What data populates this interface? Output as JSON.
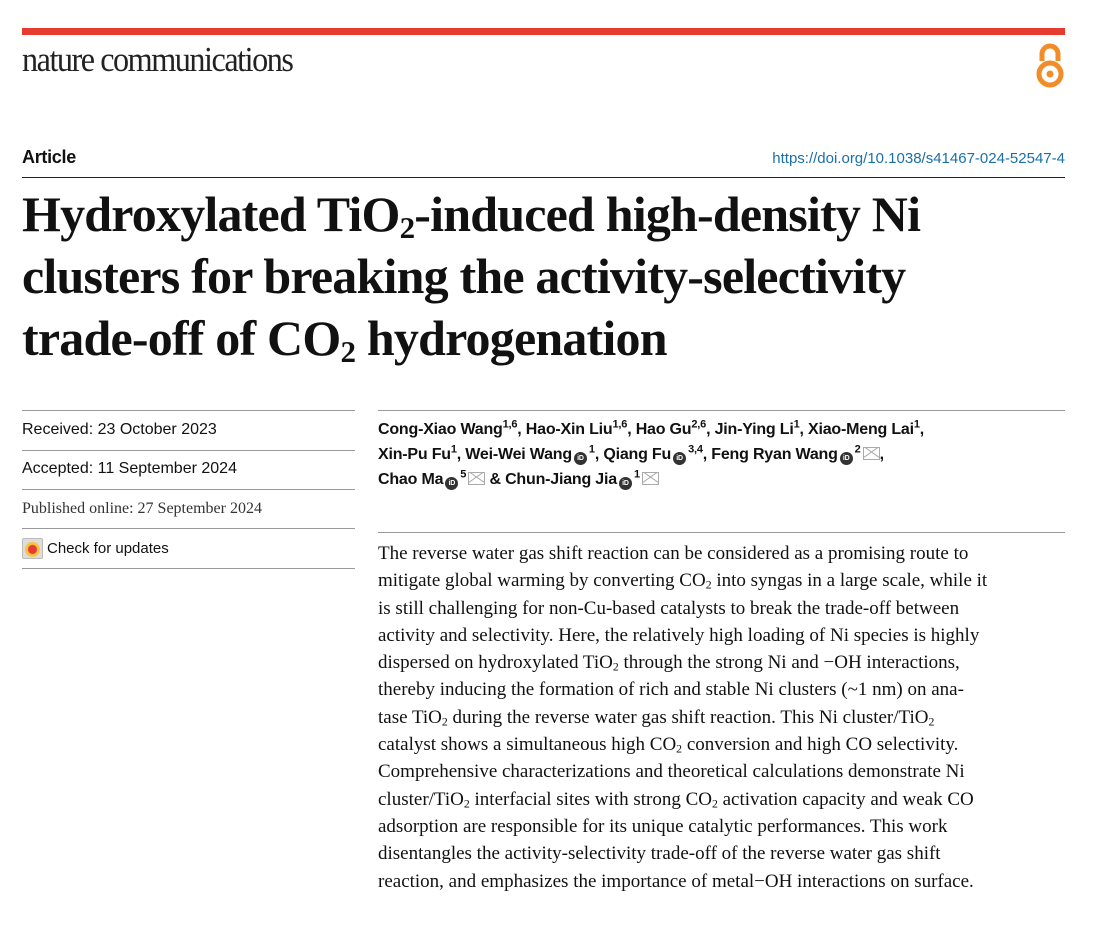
{
  "header": {
    "journal": "nature communications",
    "article_type": "Article",
    "doi": "https://doi.org/10.1038/s41467-024-52547-4",
    "open_access_icon": "open-access-icon",
    "accent_color": "#e63b2e",
    "oa_color": "#f28c28"
  },
  "title_lines": [
    [
      {
        "t": "Hydroxylated TiO"
      },
      {
        "sub": "2"
      },
      {
        "t": "-induced high-density Ni"
      }
    ],
    [
      {
        "t": "clusters for breaking the activity-selectivity"
      }
    ],
    [
      {
        "t": "trade-off of CO"
      },
      {
        "sub": "2"
      },
      {
        "t": " hydrogenation"
      }
    ]
  ],
  "meta": {
    "received": "Received: 23 October 2023",
    "accepted": "Accepted: 11 September 2024",
    "published": "Published online: 27 September 2024",
    "check_updates": "Check for updates"
  },
  "authors": [
    {
      "name": "Cong-Xiao Wang",
      "aff": "1,6"
    },
    {
      "name": "Hao-Xin Liu",
      "aff": "1,6"
    },
    {
      "name": "Hao Gu",
      "aff": "2,6"
    },
    {
      "name": "Jin-Ying Li",
      "aff": "1"
    },
    {
      "name": "Xiao-Meng Lai",
      "aff": "1"
    },
    {
      "name": "Xin-Pu Fu",
      "aff": "1",
      "br": true
    },
    {
      "name": "Wei-Wei Wang",
      "aff": "1",
      "orcid": true
    },
    {
      "name": "Qiang Fu",
      "aff": "3,4",
      "orcid": true
    },
    {
      "name": "Feng Ryan Wang",
      "aff": "2",
      "orcid": true,
      "mail": true
    },
    {
      "name": "Chao Ma",
      "aff": "5",
      "orcid": true,
      "mail": true,
      "br": true
    },
    {
      "name": "Chun-Jiang Jia",
      "aff": "1",
      "orcid": true,
      "mail": true,
      "amp": true
    }
  ],
  "orcid_label": "iD",
  "abstract_lines": [
    [
      {
        "t": "The reverse water gas shift reaction can be considered as a promising route to"
      }
    ],
    [
      {
        "t": "mitigate global warming by converting CO"
      },
      {
        "sub": "2"
      },
      {
        "t": " into syngas in a large scale, while it"
      }
    ],
    [
      {
        "t": "is still challenging for non-Cu-based catalysts to break the trade-off between"
      }
    ],
    [
      {
        "t": "activity and selectivity. Here, the relatively high loading of Ni species is highly"
      }
    ],
    [
      {
        "t": "dispersed on hydroxylated TiO"
      },
      {
        "sub": "2"
      },
      {
        "t": " through the strong Ni and −OH interactions,"
      }
    ],
    [
      {
        "t": "thereby inducing the formation of rich and stable Ni clusters (~1 nm) on ana-"
      }
    ],
    [
      {
        "t": "tase TiO"
      },
      {
        "sub": "2"
      },
      {
        "t": " during the reverse water gas shift reaction. This Ni cluster/TiO"
      },
      {
        "sub": "2"
      }
    ],
    [
      {
        "t": "catalyst shows a simultaneous high CO"
      },
      {
        "sub": "2"
      },
      {
        "t": " conversion and high CO selectivity."
      }
    ],
    [
      {
        "t": "Comprehensive characterizations and theoretical calculations demonstrate Ni"
      }
    ],
    [
      {
        "t": "cluster/TiO"
      },
      {
        "sub": "2"
      },
      {
        "t": " interfacial sites with strong CO"
      },
      {
        "sub": "2"
      },
      {
        "t": " activation capacity and weak CO"
      }
    ],
    [
      {
        "t": "adsorption are responsible for its unique catalytic performances. This work"
      }
    ],
    [
      {
        "t": "disentangles the activity-selectivity trade-off of the reverse water gas shift"
      }
    ],
    [
      {
        "t": "reaction, and emphasizes the importance of metal−OH interactions on surface."
      }
    ]
  ]
}
